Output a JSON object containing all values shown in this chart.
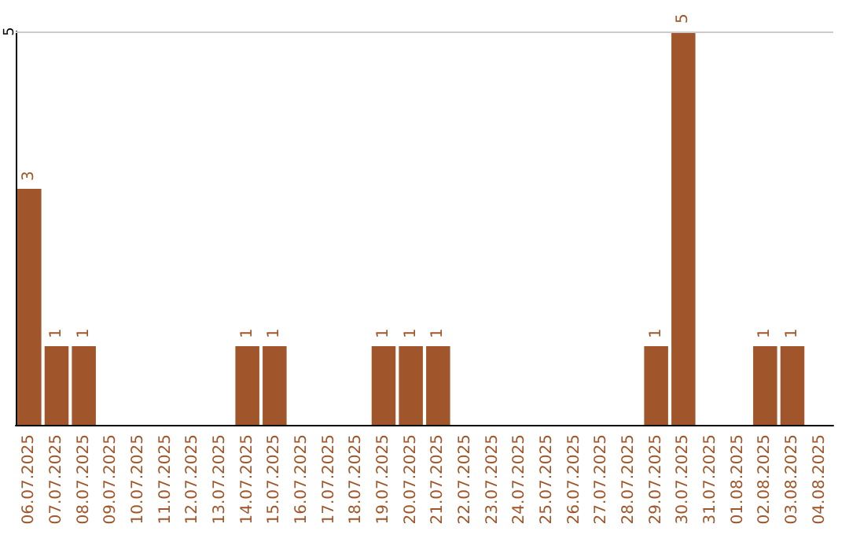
{
  "chart_data": {
    "type": "bar",
    "categories": [
      "06.07.2025",
      "07.07.2025",
      "08.07.2025",
      "09.07.2025",
      "10.07.2025",
      "11.07.2025",
      "12.07.2025",
      "13.07.2025",
      "14.07.2025",
      "15.07.2025",
      "16.07.2025",
      "17.07.2025",
      "18.07.2025",
      "19.07.2025",
      "20.07.2025",
      "21.07.2025",
      "22.07.2025",
      "23.07.2025",
      "24.07.2025",
      "25.07.2025",
      "26.07.2025",
      "27.07.2025",
      "28.07.2025",
      "29.07.2025",
      "30.07.2025",
      "31.07.2025",
      "01.08.2025",
      "02.08.2025",
      "03.08.2025",
      "04.08.2025"
    ],
    "values": [
      3,
      1,
      1,
      0,
      0,
      0,
      0,
      0,
      1,
      1,
      0,
      0,
      0,
      1,
      1,
      1,
      0,
      0,
      0,
      0,
      0,
      0,
      0,
      1,
      5,
      0,
      0,
      1,
      1,
      0
    ],
    "value_labels": [
      "3",
      "1",
      "1",
      null,
      null,
      null,
      null,
      null,
      "1",
      "1",
      null,
      null,
      null,
      "1",
      "1",
      "1",
      null,
      null,
      null,
      null,
      null,
      null,
      null,
      "1",
      "5",
      null,
      null,
      "1",
      "1",
      null
    ],
    "color": "#a0562a",
    "ylim": [
      0,
      5
    ],
    "yticks": [
      5
    ],
    "ref_lines": [
      {
        "axis": "y",
        "value": 5,
        "color": "#cccccc"
      }
    ]
  }
}
